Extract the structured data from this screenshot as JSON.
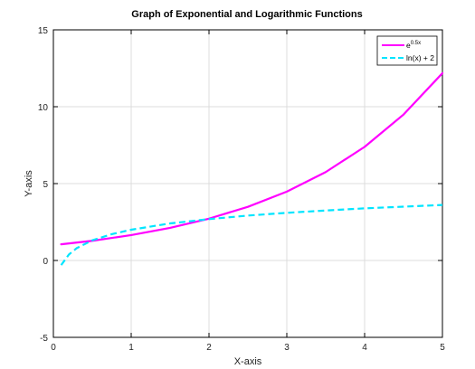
{
  "chart_data": {
    "type": "line",
    "title": "Graph of Exponential and Logarithmic Functions",
    "xlabel": "X-axis",
    "ylabel": "Y-axis",
    "xlim": [
      0,
      5
    ],
    "ylim": [
      -5,
      15
    ],
    "x_ticks": [
      "0",
      "1",
      "2",
      "3",
      "4",
      "5"
    ],
    "y_ticks": [
      "-5",
      "0",
      "5",
      "10",
      "15"
    ],
    "grid": true,
    "legend_position": "top-right",
    "series": [
      {
        "name_base": "e",
        "name_sup": "0.5x",
        "color": "#ff00ff",
        "style": "solid",
        "x": [
          0.1,
          0.5,
          1,
          1.5,
          2,
          2.5,
          3,
          3.5,
          4,
          4.5,
          5
        ],
        "y": [
          1.05,
          1.28,
          1.65,
          2.12,
          2.72,
          3.49,
          4.48,
          5.75,
          7.39,
          9.49,
          12.18
        ]
      },
      {
        "name": "ln(x) + 2",
        "color": "#00e5ff",
        "style": "dashed",
        "x": [
          0.1,
          0.2,
          0.3,
          0.5,
          0.75,
          1,
          1.5,
          2,
          2.5,
          3,
          3.5,
          4,
          4.5,
          5
        ],
        "y": [
          -0.3,
          0.39,
          0.8,
          1.31,
          1.71,
          2.0,
          2.41,
          2.69,
          2.92,
          3.1,
          3.25,
          3.39,
          3.5,
          3.61
        ]
      }
    ]
  }
}
